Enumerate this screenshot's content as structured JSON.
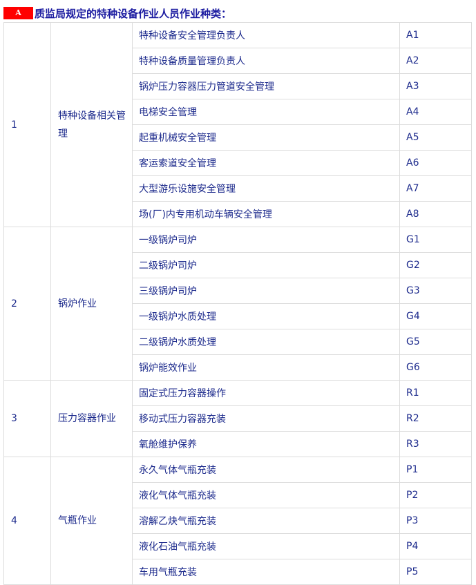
{
  "heading": {
    "badge": "A",
    "text": "质监局规定的特种设备作业人员作业种类："
  },
  "groups": [
    {
      "no": "1",
      "category": "特种设备相关管理",
      "items": [
        {
          "name": "特种设备安全管理负责人",
          "code": "A1"
        },
        {
          "name": "特种设备质量管理负责人",
          "code": "A2"
        },
        {
          "name": "锅炉压力容器压力管道安全管理",
          "code": "A3"
        },
        {
          "name": "电梯安全管理",
          "code": "A4"
        },
        {
          "name": "起重机械安全管理",
          "code": "A5"
        },
        {
          "name": "客运索道安全管理",
          "code": "A6"
        },
        {
          "name": "大型游乐设施安全管理",
          "code": "A7"
        },
        {
          "name": "场(厂)内专用机动车辆安全管理",
          "code": "A8"
        }
      ]
    },
    {
      "no": "2",
      "category": "锅炉作业",
      "items": [
        {
          "name": "一级锅炉司炉",
          "code": "G1"
        },
        {
          "name": "二级锅炉司炉",
          "code": "G2"
        },
        {
          "name": "三级锅炉司炉",
          "code": "G3"
        },
        {
          "name": "一级锅炉水质处理",
          "code": "G4"
        },
        {
          "name": "二级锅炉水质处理",
          "code": "G5"
        },
        {
          "name": "锅炉能效作业",
          "code": "G6"
        }
      ]
    },
    {
      "no": "3",
      "category": "压力容器作业",
      "items": [
        {
          "name": "固定式压力容器操作",
          "code": "R1"
        },
        {
          "name": "移动式压力容器充装",
          "code": "R2"
        },
        {
          "name": "氧舱维护保养",
          "code": "R3"
        }
      ]
    },
    {
      "no": "4",
      "category": "气瓶作业",
      "items": [
        {
          "name": "永久气体气瓶充装",
          "code": "P1"
        },
        {
          "name": "液化气体气瓶充装",
          "code": "P2"
        },
        {
          "name": "溶解乙炔气瓶充装",
          "code": "P3"
        },
        {
          "name": "液化石油气瓶充装",
          "code": "P4"
        },
        {
          "name": "车用气瓶充装",
          "code": "P5"
        }
      ]
    }
  ]
}
